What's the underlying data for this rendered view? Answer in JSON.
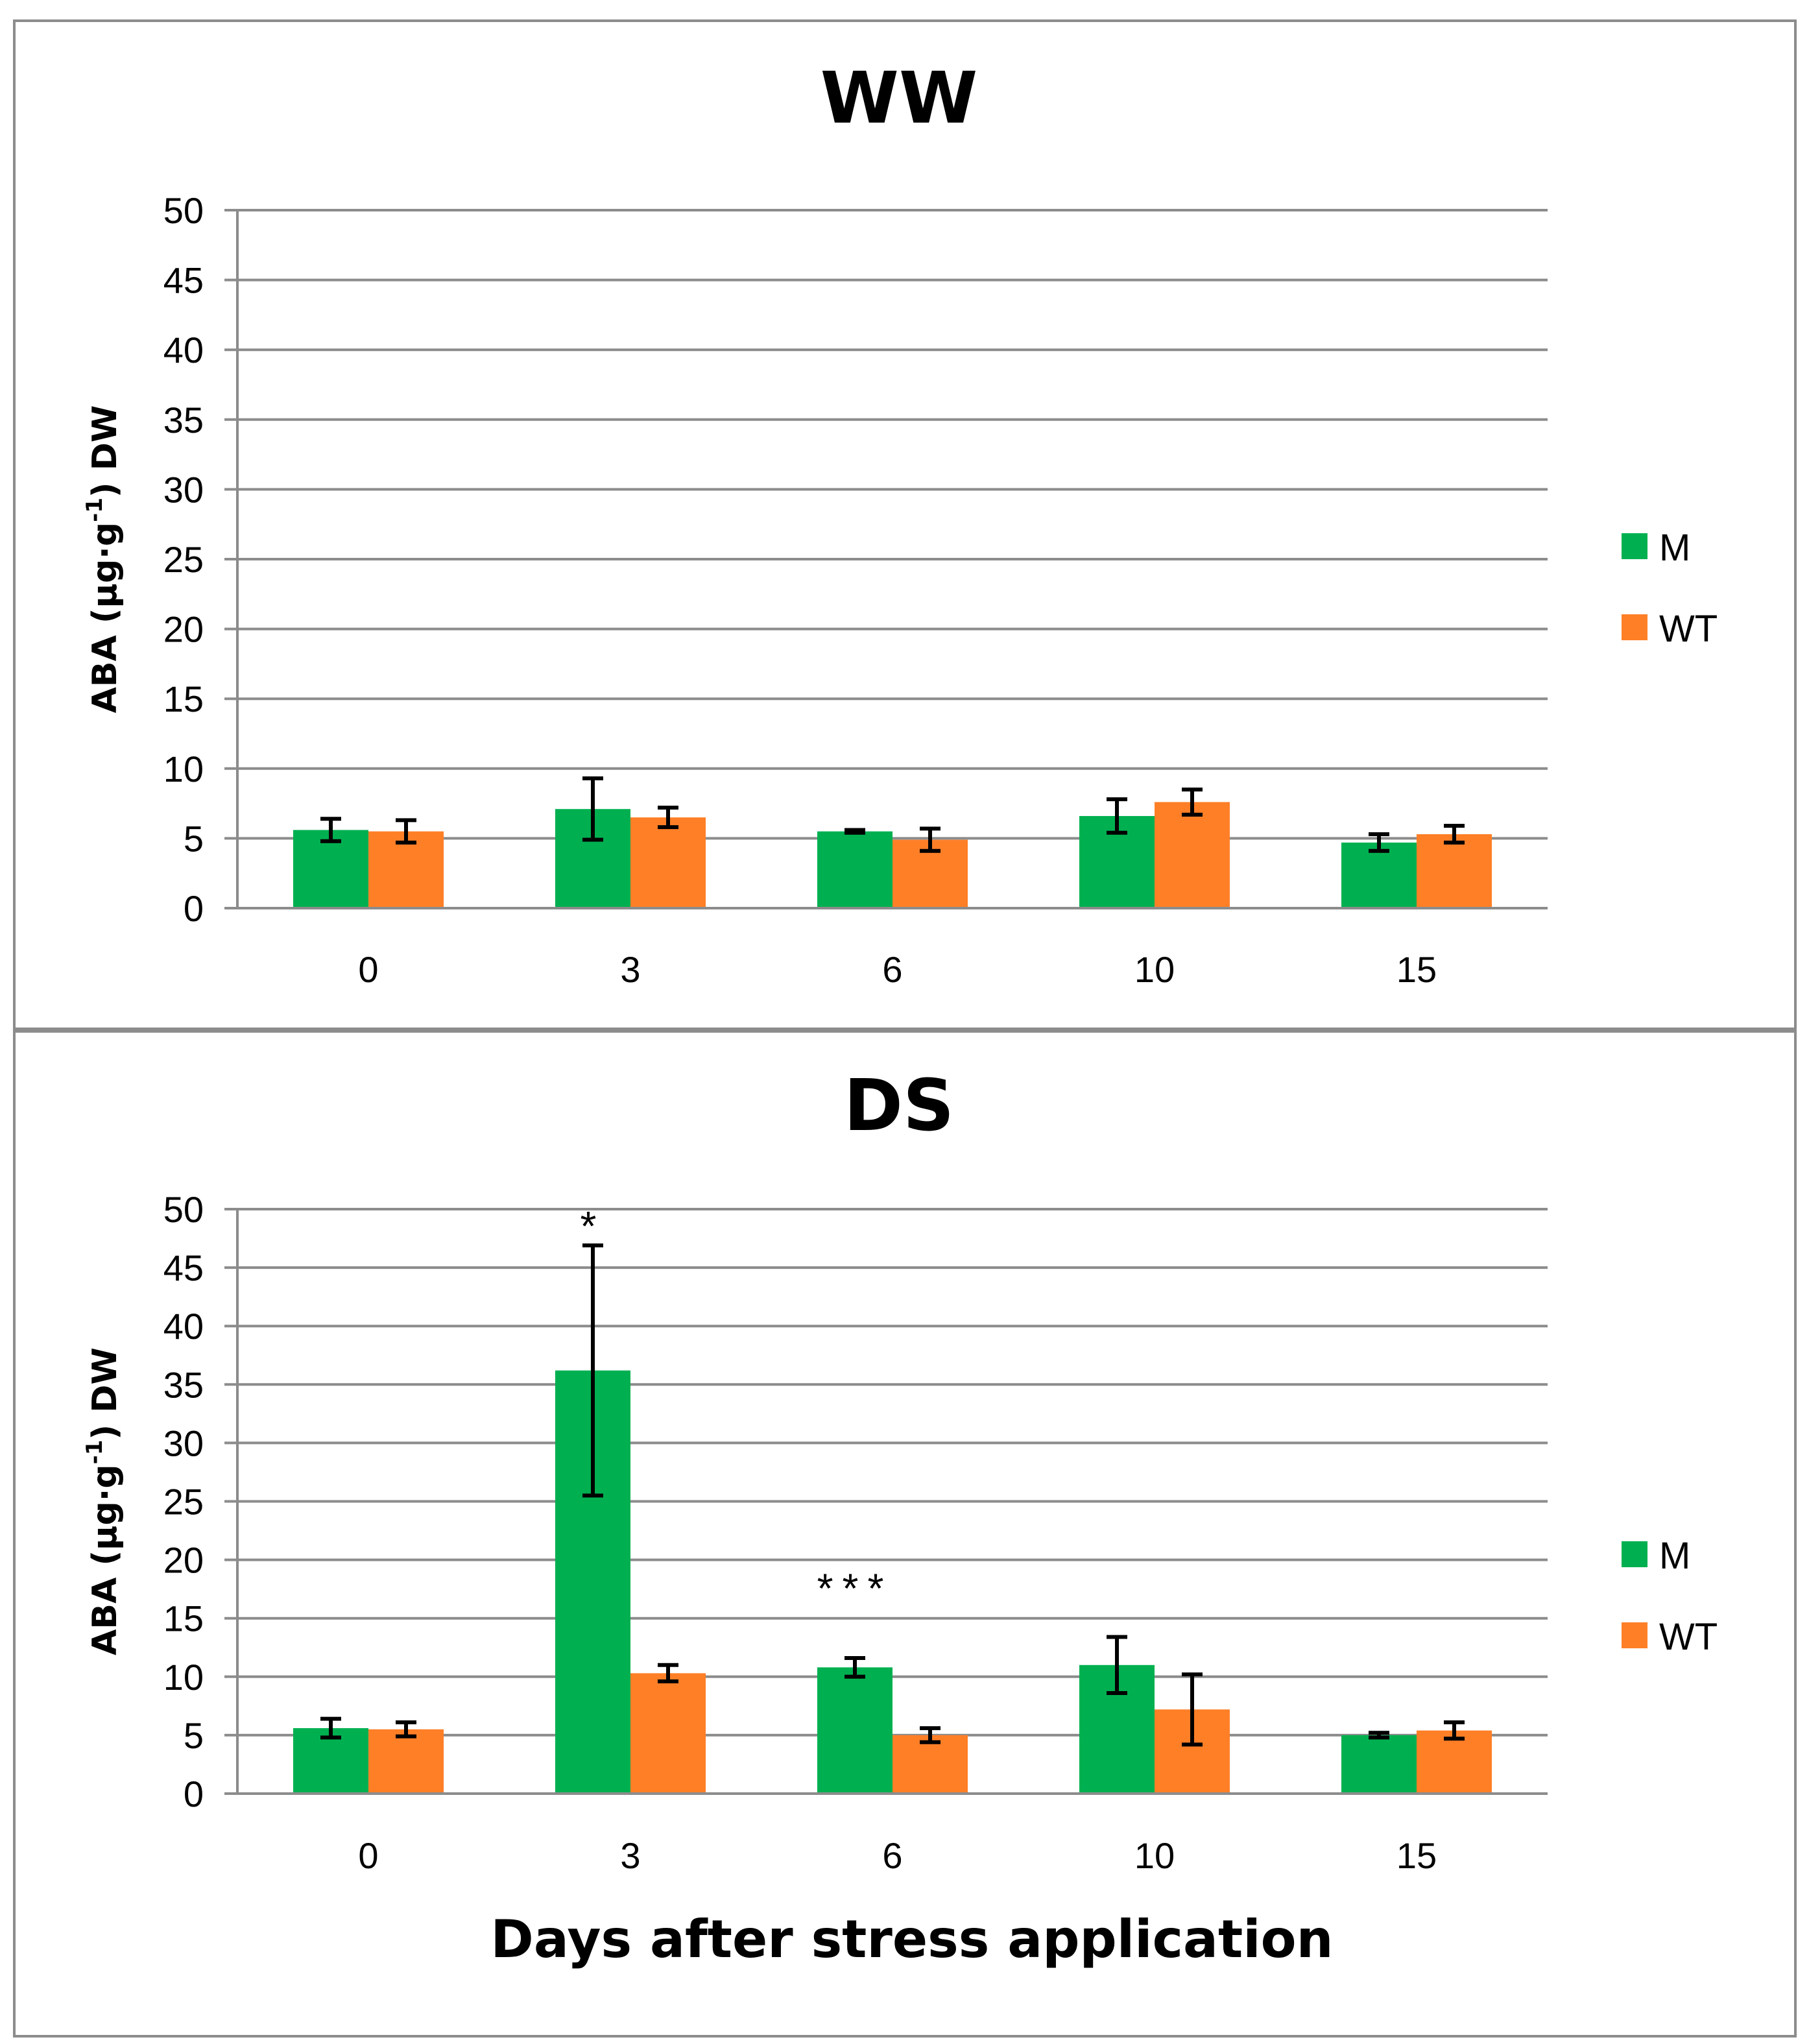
{
  "chart_data": [
    {
      "type": "bar",
      "title": "WW",
      "xlabel": "",
      "ylabel": "ABA (µg·g",
      "ylabel_sup": "-1",
      "ylabel_suffix": ") DW",
      "categories": [
        "0",
        "3",
        "6",
        "10",
        "15"
      ],
      "ylim": [
        0,
        50
      ],
      "yticks": [
        0,
        5,
        10,
        15,
        20,
        25,
        30,
        35,
        40,
        45,
        50
      ],
      "grid": true,
      "legend_position": "right",
      "series": [
        {
          "name": "M",
          "color": "#00b050",
          "values": [
            5.6,
            7.1,
            5.5,
            6.6,
            4.7
          ],
          "errors": [
            0.8,
            2.2,
            0.1,
            1.2,
            0.6
          ]
        },
        {
          "name": "WT",
          "color": "#ff7f27",
          "values": [
            5.5,
            6.5,
            4.9,
            7.6,
            5.3
          ],
          "errors": [
            0.8,
            0.7,
            0.8,
            0.9,
            0.6
          ]
        }
      ],
      "annotations": []
    },
    {
      "type": "bar",
      "title": "DS",
      "xlabel": "Days after stress application",
      "ylabel": "ABA (µg·g",
      "ylabel_sup": "-1",
      "ylabel_suffix": ") DW",
      "categories": [
        "0",
        "3",
        "6",
        "10",
        "15"
      ],
      "ylim": [
        0,
        50
      ],
      "yticks": [
        0,
        5,
        10,
        15,
        20,
        25,
        30,
        35,
        40,
        45,
        50
      ],
      "grid": true,
      "legend_position": "right",
      "series": [
        {
          "name": "M",
          "color": "#00b050",
          "values": [
            5.6,
            36.2,
            10.8,
            11.0,
            5.0
          ],
          "errors": [
            0.8,
            10.7,
            0.8,
            2.4,
            0.2
          ]
        },
        {
          "name": "WT",
          "color": "#ff7f27",
          "values": [
            5.5,
            10.3,
            5.0,
            7.2,
            5.4
          ],
          "errors": [
            0.6,
            0.7,
            0.6,
            3.0,
            0.7
          ]
        }
      ],
      "annotations": [
        {
          "text": "*",
          "category": "3",
          "value": 49
        },
        {
          "text": "***",
          "category": "6",
          "value": 18
        }
      ]
    }
  ]
}
